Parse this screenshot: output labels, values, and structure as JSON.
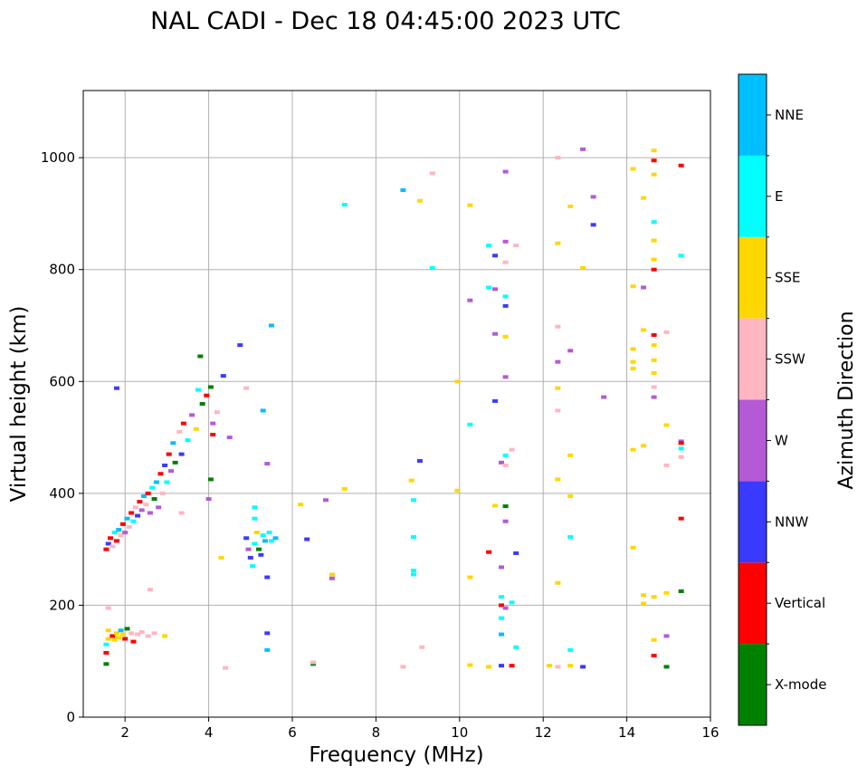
{
  "chart_data": {
    "type": "scatter",
    "title": "NAL CADI - Dec 18 04:45:00 2023 UTC",
    "xlabel": "Frequency (MHz)",
    "ylabel": "Virtual height (km)",
    "xlim": [
      1,
      16
    ],
    "ylim": [
      0,
      1120
    ],
    "xticks": [
      2,
      4,
      6,
      8,
      10,
      12,
      14,
      16
    ],
    "yticks": [
      0,
      200,
      400,
      600,
      800,
      1000
    ],
    "grid": true,
    "colorbar": {
      "label": "Azimuth Direction",
      "categories": [
        {
          "name": "X-mode",
          "color": "#008000"
        },
        {
          "name": "Vertical",
          "color": "#ff0000"
        },
        {
          "name": "NNW",
          "color": "#3a3aff"
        },
        {
          "name": "W",
          "color": "#b45ad6"
        },
        {
          "name": "SSW",
          "color": "#ffb6c1"
        },
        {
          "name": "SSE",
          "color": "#ffd700"
        },
        {
          "name": "E",
          "color": "#00ffff"
        },
        {
          "name": "NNE",
          "color": "#00bfff"
        }
      ]
    },
    "points": [
      {
        "f": 1.55,
        "h": 95,
        "c": "X-mode"
      },
      {
        "f": 1.55,
        "h": 115,
        "c": "Vertical"
      },
      {
        "f": 1.55,
        "h": 130,
        "c": "E"
      },
      {
        "f": 1.6,
        "h": 140,
        "c": "SSE"
      },
      {
        "f": 1.6,
        "h": 155,
        "c": "SSE"
      },
      {
        "f": 1.7,
        "h": 145,
        "c": "Vertical"
      },
      {
        "f": 1.75,
        "h": 138,
        "c": "SSE"
      },
      {
        "f": 1.8,
        "h": 150,
        "c": "SSE"
      },
      {
        "f": 1.85,
        "h": 142,
        "c": "SSE"
      },
      {
        "f": 1.9,
        "h": 155,
        "c": "NNE"
      },
      {
        "f": 1.95,
        "h": 148,
        "c": "SSE"
      },
      {
        "f": 2.0,
        "h": 140,
        "c": "Vertical"
      },
      {
        "f": 2.05,
        "h": 158,
        "c": "X-mode"
      },
      {
        "f": 2.15,
        "h": 150,
        "c": "SSW"
      },
      {
        "f": 2.2,
        "h": 135,
        "c": "Vertical"
      },
      {
        "f": 2.3,
        "h": 148,
        "c": "SSW"
      },
      {
        "f": 2.4,
        "h": 152,
        "c": "SSW"
      },
      {
        "f": 2.55,
        "h": 145,
        "c": "SSW"
      },
      {
        "f": 2.7,
        "h": 150,
        "c": "SSW"
      },
      {
        "f": 2.95,
        "h": 145,
        "c": "SSE"
      },
      {
        "f": 1.6,
        "h": 195,
        "c": "SSW"
      },
      {
        "f": 2.6,
        "h": 228,
        "c": "SSW"
      },
      {
        "f": 1.55,
        "h": 300,
        "c": "Vertical"
      },
      {
        "f": 1.6,
        "h": 310,
        "c": "NNW"
      },
      {
        "f": 1.65,
        "h": 320,
        "c": "Vertical"
      },
      {
        "f": 1.7,
        "h": 305,
        "c": "SSW"
      },
      {
        "f": 1.75,
        "h": 330,
        "c": "E"
      },
      {
        "f": 1.8,
        "h": 315,
        "c": "Vertical"
      },
      {
        "f": 1.85,
        "h": 335,
        "c": "NNE"
      },
      {
        "f": 1.9,
        "h": 325,
        "c": "SSW"
      },
      {
        "f": 1.95,
        "h": 345,
        "c": "Vertical"
      },
      {
        "f": 2.0,
        "h": 330,
        "c": "W"
      },
      {
        "f": 2.05,
        "h": 355,
        "c": "NNE"
      },
      {
        "f": 2.1,
        "h": 340,
        "c": "SSW"
      },
      {
        "f": 2.15,
        "h": 365,
        "c": "Vertical"
      },
      {
        "f": 2.2,
        "h": 350,
        "c": "E"
      },
      {
        "f": 2.25,
        "h": 375,
        "c": "SSW"
      },
      {
        "f": 2.3,
        "h": 360,
        "c": "NNW"
      },
      {
        "f": 2.35,
        "h": 385,
        "c": "Vertical"
      },
      {
        "f": 2.4,
        "h": 370,
        "c": "W"
      },
      {
        "f": 2.45,
        "h": 395,
        "c": "NNE"
      },
      {
        "f": 2.5,
        "h": 380,
        "c": "SSW"
      },
      {
        "f": 2.55,
        "h": 400,
        "c": "Vertical"
      },
      {
        "f": 2.6,
        "h": 365,
        "c": "W"
      },
      {
        "f": 2.65,
        "h": 410,
        "c": "E"
      },
      {
        "f": 2.7,
        "h": 390,
        "c": "X-mode"
      },
      {
        "f": 2.75,
        "h": 420,
        "c": "NNE"
      },
      {
        "f": 2.8,
        "h": 375,
        "c": "W"
      },
      {
        "f": 2.85,
        "h": 435,
        "c": "Vertical"
      },
      {
        "f": 2.9,
        "h": 400,
        "c": "SSW"
      },
      {
        "f": 2.95,
        "h": 450,
        "c": "NNW"
      },
      {
        "f": 3.0,
        "h": 420,
        "c": "E"
      },
      {
        "f": 3.05,
        "h": 470,
        "c": "Vertical"
      },
      {
        "f": 3.1,
        "h": 440,
        "c": "W"
      },
      {
        "f": 3.15,
        "h": 490,
        "c": "NNE"
      },
      {
        "f": 3.2,
        "h": 455,
        "c": "X-mode"
      },
      {
        "f": 3.3,
        "h": 510,
        "c": "SSW"
      },
      {
        "f": 3.35,
        "h": 470,
        "c": "NNW"
      },
      {
        "f": 3.4,
        "h": 525,
        "c": "Vertical"
      },
      {
        "f": 3.5,
        "h": 495,
        "c": "E"
      },
      {
        "f": 3.6,
        "h": 540,
        "c": "W"
      },
      {
        "f": 3.7,
        "h": 515,
        "c": "SSE"
      },
      {
        "f": 3.75,
        "h": 585,
        "c": "E"
      },
      {
        "f": 3.85,
        "h": 560,
        "c": "X-mode"
      },
      {
        "f": 3.95,
        "h": 575,
        "c": "Vertical"
      },
      {
        "f": 4.05,
        "h": 590,
        "c": "X-mode"
      },
      {
        "f": 4.1,
        "h": 525,
        "c": "W"
      },
      {
        "f": 4.2,
        "h": 545,
        "c": "SSW"
      },
      {
        "f": 4.35,
        "h": 610,
        "c": "NNW"
      },
      {
        "f": 4.5,
        "h": 500,
        "c": "W"
      },
      {
        "f": 3.8,
        "h": 645,
        "c": "X-mode"
      },
      {
        "f": 4.05,
        "h": 425,
        "c": "X-mode"
      },
      {
        "f": 4.0,
        "h": 390,
        "c": "W"
      },
      {
        "f": 1.8,
        "h": 588,
        "c": "NNW"
      },
      {
        "f": 3.35,
        "h": 365,
        "c": "SSW"
      },
      {
        "f": 4.3,
        "h": 285,
        "c": "SSE"
      },
      {
        "f": 4.4,
        "h": 88,
        "c": "SSW"
      },
      {
        "f": 4.9,
        "h": 320,
        "c": "NNW"
      },
      {
        "f": 4.95,
        "h": 300,
        "c": "W"
      },
      {
        "f": 5.0,
        "h": 285,
        "c": "NNW"
      },
      {
        "f": 5.05,
        "h": 270,
        "c": "E"
      },
      {
        "f": 5.1,
        "h": 310,
        "c": "E"
      },
      {
        "f": 5.15,
        "h": 330,
        "c": "SSE"
      },
      {
        "f": 5.2,
        "h": 300,
        "c": "X-mode"
      },
      {
        "f": 5.25,
        "h": 290,
        "c": "NNW"
      },
      {
        "f": 5.3,
        "h": 325,
        "c": "E"
      },
      {
        "f": 5.35,
        "h": 315,
        "c": "NNE"
      },
      {
        "f": 5.4,
        "h": 250,
        "c": "NNW"
      },
      {
        "f": 5.45,
        "h": 330,
        "c": "E"
      },
      {
        "f": 5.5,
        "h": 315,
        "c": "E"
      },
      {
        "f": 5.6,
        "h": 320,
        "c": "NNE"
      },
      {
        "f": 5.1,
        "h": 375,
        "c": "E"
      },
      {
        "f": 5.1,
        "h": 355,
        "c": "E"
      },
      {
        "f": 5.4,
        "h": 150,
        "c": "NNW"
      },
      {
        "f": 5.4,
        "h": 120,
        "c": "NNE"
      },
      {
        "f": 5.3,
        "h": 548,
        "c": "NNE"
      },
      {
        "f": 5.4,
        "h": 453,
        "c": "W"
      },
      {
        "f": 5.5,
        "h": 700,
        "c": "NNE"
      },
      {
        "f": 4.9,
        "h": 588,
        "c": "SSW"
      },
      {
        "f": 4.75,
        "h": 665,
        "c": "NNW"
      },
      {
        "f": 4.1,
        "h": 505,
        "c": "Vertical"
      },
      {
        "f": 6.35,
        "h": 318,
        "c": "NNW"
      },
      {
        "f": 6.5,
        "h": 95,
        "c": "X-mode"
      },
      {
        "f": 6.5,
        "h": 98,
        "c": "SSW"
      },
      {
        "f": 6.2,
        "h": 380,
        "c": "SSE"
      },
      {
        "f": 6.8,
        "h": 388,
        "c": "W"
      },
      {
        "f": 6.95,
        "h": 255,
        "c": "SSE"
      },
      {
        "f": 6.95,
        "h": 248,
        "c": "W"
      },
      {
        "f": 7.25,
        "h": 408,
        "c": "SSE"
      },
      {
        "f": 7.25,
        "h": 916,
        "c": "E"
      },
      {
        "f": 8.65,
        "h": 942,
        "c": "NNE"
      },
      {
        "f": 8.65,
        "h": 90,
        "c": "SSW"
      },
      {
        "f": 8.85,
        "h": 423,
        "c": "SSE"
      },
      {
        "f": 8.9,
        "h": 388,
        "c": "E"
      },
      {
        "f": 8.9,
        "h": 322,
        "c": "E"
      },
      {
        "f": 8.9,
        "h": 262,
        "c": "E"
      },
      {
        "f": 8.9,
        "h": 255,
        "c": "E"
      },
      {
        "f": 9.05,
        "h": 923,
        "c": "SSE"
      },
      {
        "f": 9.05,
        "h": 458,
        "c": "NNW"
      },
      {
        "f": 9.1,
        "h": 125,
        "c": "SSW"
      },
      {
        "f": 9.35,
        "h": 972,
        "c": "SSW"
      },
      {
        "f": 9.35,
        "h": 803,
        "c": "E"
      },
      {
        "f": 9.95,
        "h": 600,
        "c": "SSE"
      },
      {
        "f": 9.95,
        "h": 405,
        "c": "SSE"
      },
      {
        "f": 10.25,
        "h": 915,
        "c": "SSE"
      },
      {
        "f": 10.25,
        "h": 745,
        "c": "W"
      },
      {
        "f": 10.25,
        "h": 523,
        "c": "E"
      },
      {
        "f": 10.25,
        "h": 250,
        "c": "SSE"
      },
      {
        "f": 10.25,
        "h": 93,
        "c": "SSE"
      },
      {
        "f": 10.7,
        "h": 843,
        "c": "E"
      },
      {
        "f": 10.7,
        "h": 768,
        "c": "E"
      },
      {
        "f": 10.7,
        "h": 295,
        "c": "Vertical"
      },
      {
        "f": 10.7,
        "h": 90,
        "c": "SSE"
      },
      {
        "f": 10.85,
        "h": 825,
        "c": "NNW"
      },
      {
        "f": 10.85,
        "h": 765,
        "c": "W"
      },
      {
        "f": 10.85,
        "h": 685,
        "c": "W"
      },
      {
        "f": 10.85,
        "h": 565,
        "c": "NNW"
      },
      {
        "f": 10.85,
        "h": 378,
        "c": "SSE"
      },
      {
        "f": 11.0,
        "h": 268,
        "c": "W"
      },
      {
        "f": 11.0,
        "h": 215,
        "c": "E"
      },
      {
        "f": 11.0,
        "h": 200,
        "c": "Vertical"
      },
      {
        "f": 11.0,
        "h": 177,
        "c": "E"
      },
      {
        "f": 11.0,
        "h": 148,
        "c": "NNE"
      },
      {
        "f": 11.0,
        "h": 92,
        "c": "NNW"
      },
      {
        "f": 11.0,
        "h": 455,
        "c": "W"
      },
      {
        "f": 11.1,
        "h": 975,
        "c": "W"
      },
      {
        "f": 11.1,
        "h": 850,
        "c": "W"
      },
      {
        "f": 11.1,
        "h": 813,
        "c": "SSW"
      },
      {
        "f": 11.1,
        "h": 752,
        "c": "E"
      },
      {
        "f": 11.1,
        "h": 735,
        "c": "NNW"
      },
      {
        "f": 11.1,
        "h": 680,
        "c": "SSE"
      },
      {
        "f": 11.1,
        "h": 608,
        "c": "W"
      },
      {
        "f": 11.1,
        "h": 468,
        "c": "E"
      },
      {
        "f": 11.1,
        "h": 450,
        "c": "SSW"
      },
      {
        "f": 11.1,
        "h": 377,
        "c": "X-mode"
      },
      {
        "f": 11.1,
        "h": 350,
        "c": "W"
      },
      {
        "f": 11.1,
        "h": 195,
        "c": "W"
      },
      {
        "f": 11.25,
        "h": 478,
        "c": "SSW"
      },
      {
        "f": 11.25,
        "h": 205,
        "c": "E"
      },
      {
        "f": 11.25,
        "h": 92,
        "c": "Vertical"
      },
      {
        "f": 11.35,
        "h": 843,
        "c": "SSW"
      },
      {
        "f": 11.35,
        "h": 293,
        "c": "NNW"
      },
      {
        "f": 11.35,
        "h": 125,
        "c": "E"
      },
      {
        "f": 12.15,
        "h": 92,
        "c": "SSE"
      },
      {
        "f": 12.35,
        "h": 1000,
        "c": "SSW"
      },
      {
        "f": 12.35,
        "h": 847,
        "c": "SSE"
      },
      {
        "f": 12.35,
        "h": 698,
        "c": "SSW"
      },
      {
        "f": 12.35,
        "h": 635,
        "c": "W"
      },
      {
        "f": 12.35,
        "h": 588,
        "c": "SSE"
      },
      {
        "f": 12.35,
        "h": 548,
        "c": "SSW"
      },
      {
        "f": 12.35,
        "h": 425,
        "c": "SSE"
      },
      {
        "f": 12.35,
        "h": 240,
        "c": "SSE"
      },
      {
        "f": 12.35,
        "h": 90,
        "c": "SSW"
      },
      {
        "f": 12.65,
        "h": 913,
        "c": "SSE"
      },
      {
        "f": 12.65,
        "h": 655,
        "c": "W"
      },
      {
        "f": 12.65,
        "h": 468,
        "c": "SSE"
      },
      {
        "f": 12.65,
        "h": 395,
        "c": "SSE"
      },
      {
        "f": 12.65,
        "h": 322,
        "c": "E"
      },
      {
        "f": 12.65,
        "h": 120,
        "c": "E"
      },
      {
        "f": 12.65,
        "h": 92,
        "c": "SSE"
      },
      {
        "f": 12.95,
        "h": 1015,
        "c": "W"
      },
      {
        "f": 12.95,
        "h": 803,
        "c": "SSE"
      },
      {
        "f": 12.95,
        "h": 90,
        "c": "NNW"
      },
      {
        "f": 13.2,
        "h": 930,
        "c": "W"
      },
      {
        "f": 13.2,
        "h": 880,
        "c": "NNW"
      },
      {
        "f": 13.45,
        "h": 572,
        "c": "W"
      },
      {
        "f": 14.15,
        "h": 980,
        "c": "SSE"
      },
      {
        "f": 14.15,
        "h": 770,
        "c": "SSE"
      },
      {
        "f": 14.15,
        "h": 658,
        "c": "SSE"
      },
      {
        "f": 14.15,
        "h": 635,
        "c": "SSE"
      },
      {
        "f": 14.15,
        "h": 623,
        "c": "SSE"
      },
      {
        "f": 14.15,
        "h": 478,
        "c": "SSE"
      },
      {
        "f": 14.15,
        "h": 303,
        "c": "SSE"
      },
      {
        "f": 14.4,
        "h": 928,
        "c": "SSE"
      },
      {
        "f": 14.4,
        "h": 768,
        "c": "W"
      },
      {
        "f": 14.4,
        "h": 692,
        "c": "SSE"
      },
      {
        "f": 14.4,
        "h": 485,
        "c": "SSE"
      },
      {
        "f": 14.4,
        "h": 218,
        "c": "SSE"
      },
      {
        "f": 14.4,
        "h": 203,
        "c": "SSE"
      },
      {
        "f": 14.65,
        "h": 1013,
        "c": "SSE"
      },
      {
        "f": 14.65,
        "h": 995,
        "c": "Vertical"
      },
      {
        "f": 14.65,
        "h": 970,
        "c": "SSE"
      },
      {
        "f": 14.65,
        "h": 885,
        "c": "E"
      },
      {
        "f": 14.65,
        "h": 852,
        "c": "SSE"
      },
      {
        "f": 14.65,
        "h": 818,
        "c": "SSE"
      },
      {
        "f": 14.65,
        "h": 800,
        "c": "Vertical"
      },
      {
        "f": 14.65,
        "h": 683,
        "c": "Vertical"
      },
      {
        "f": 14.65,
        "h": 665,
        "c": "SSE"
      },
      {
        "f": 14.65,
        "h": 638,
        "c": "SSE"
      },
      {
        "f": 14.65,
        "h": 615,
        "c": "SSE"
      },
      {
        "f": 14.65,
        "h": 590,
        "c": "SSW"
      },
      {
        "f": 14.65,
        "h": 572,
        "c": "W"
      },
      {
        "f": 14.65,
        "h": 215,
        "c": "SSE"
      },
      {
        "f": 14.65,
        "h": 138,
        "c": "SSE"
      },
      {
        "f": 14.65,
        "h": 110,
        "c": "Vertical"
      },
      {
        "f": 14.95,
        "h": 688,
        "c": "SSW"
      },
      {
        "f": 14.95,
        "h": 522,
        "c": "SSE"
      },
      {
        "f": 14.95,
        "h": 450,
        "c": "SSW"
      },
      {
        "f": 14.95,
        "h": 222,
        "c": "SSE"
      },
      {
        "f": 14.95,
        "h": 145,
        "c": "W"
      },
      {
        "f": 14.95,
        "h": 90,
        "c": "X-mode"
      },
      {
        "f": 15.3,
        "h": 986,
        "c": "Vertical"
      },
      {
        "f": 15.3,
        "h": 825,
        "c": "E"
      },
      {
        "f": 15.3,
        "h": 493,
        "c": "W"
      },
      {
        "f": 15.3,
        "h": 490,
        "c": "Vertical"
      },
      {
        "f": 15.3,
        "h": 480,
        "c": "E"
      },
      {
        "f": 15.3,
        "h": 465,
        "c": "SSW"
      },
      {
        "f": 15.3,
        "h": 355,
        "c": "Vertical"
      },
      {
        "f": 15.3,
        "h": 225,
        "c": "X-mode"
      }
    ]
  }
}
